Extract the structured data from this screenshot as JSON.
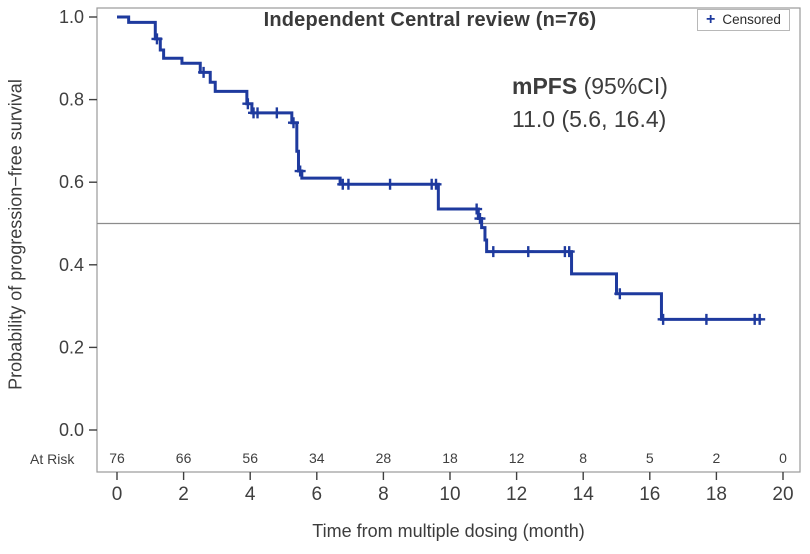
{
  "title": "Independent Central review (n=76)",
  "legend": {
    "marker": "+",
    "label": "Censored"
  },
  "annotation": {
    "mpfs_bold": "mPFS",
    "mpfs_rest": " (95%CI)",
    "value_line": "11.0 (5.6, 16.4)"
  },
  "axes": {
    "y_label": "Probability of progression−free survival",
    "x_label": "Time from multiple dosing (month)",
    "y_ticks": [
      "0.0",
      "0.2",
      "0.4",
      "0.6",
      "0.8",
      "1.0"
    ],
    "x_ticks": [
      "0",
      "2",
      "4",
      "6",
      "8",
      "10",
      "12",
      "14",
      "16",
      "18",
      "20"
    ]
  },
  "at_risk_label": "At Risk",
  "colors": {
    "curve": "#1e3a9e",
    "text": "#3c3c3c",
    "tick_text": "#3f3f3f",
    "frame": "#9a9a9a",
    "reference_line": "#8c8c8c",
    "legend_border": "#b8b8b8"
  },
  "chart_data": {
    "type": "line",
    "subtype": "kaplan-meier-step",
    "title": "Independent Central review (n=76)",
    "xlabel": "Time from multiple dosing (month)",
    "ylabel": "Probability of progression−free survival",
    "xlim": [
      0,
      20
    ],
    "ylim": [
      0.0,
      1.0
    ],
    "y_tick_values": [
      0.0,
      0.2,
      0.4,
      0.6,
      0.8,
      1.0
    ],
    "x_tick_values": [
      0,
      2,
      4,
      6,
      8,
      10,
      12,
      14,
      16,
      18,
      20
    ],
    "grid": false,
    "legend_position": "top-right",
    "reference_line_y": 0.5,
    "median_pfs": {
      "label": "mPFS (95%CI)",
      "value": "11.0 (5.6, 16.4)"
    },
    "start": [
      0,
      1.0
    ],
    "end_time": 19.35,
    "steps": [
      [
        0.35,
        0.987
      ],
      [
        1.15,
        0.947
      ],
      [
        1.3,
        0.92
      ],
      [
        1.4,
        0.9
      ],
      [
        1.95,
        0.888
      ],
      [
        2.5,
        0.866
      ],
      [
        2.8,
        0.842
      ],
      [
        2.95,
        0.82
      ],
      [
        3.9,
        0.79
      ],
      [
        4.05,
        0.768
      ],
      [
        5.25,
        0.744
      ],
      [
        5.4,
        0.675
      ],
      [
        5.45,
        0.627
      ],
      [
        5.55,
        0.61
      ],
      [
        6.7,
        0.595
      ],
      [
        9.65,
        0.535
      ],
      [
        10.85,
        0.512
      ],
      [
        10.95,
        0.49
      ],
      [
        11.05,
        0.46
      ],
      [
        11.1,
        0.432
      ],
      [
        13.65,
        0.378
      ],
      [
        15.0,
        0.33
      ],
      [
        16.35,
        0.268
      ]
    ],
    "censored": [
      [
        1.2,
        0.947
      ],
      [
        2.6,
        0.866
      ],
      [
        3.93,
        0.79
      ],
      [
        4.1,
        0.768
      ],
      [
        4.22,
        0.768
      ],
      [
        4.8,
        0.768
      ],
      [
        5.3,
        0.744
      ],
      [
        5.5,
        0.627
      ],
      [
        6.78,
        0.595
      ],
      [
        6.95,
        0.595
      ],
      [
        8.2,
        0.595
      ],
      [
        9.45,
        0.595
      ],
      [
        9.58,
        0.595
      ],
      [
        10.8,
        0.535
      ],
      [
        10.9,
        0.512
      ],
      [
        11.3,
        0.432
      ],
      [
        12.35,
        0.432
      ],
      [
        13.45,
        0.432
      ],
      [
        13.58,
        0.432
      ],
      [
        15.1,
        0.33
      ],
      [
        16.4,
        0.268
      ],
      [
        17.7,
        0.268
      ],
      [
        19.15,
        0.268
      ],
      [
        19.3,
        0.268
      ]
    ],
    "at_risk": {
      "label": "At Risk",
      "times": [
        0,
        2,
        4,
        6,
        8,
        10,
        12,
        14,
        16,
        18,
        20
      ],
      "counts": [
        76,
        66,
        56,
        34,
        28,
        18,
        12,
        8,
        5,
        2,
        0
      ]
    }
  }
}
